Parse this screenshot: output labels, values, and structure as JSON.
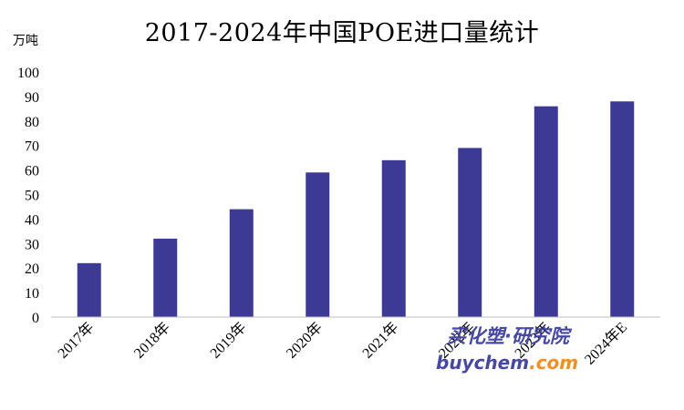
{
  "chart_data": {
    "type": "bar",
    "title": "2017-2024年中国POE进口量统计",
    "ylabel": "万吨",
    "xlabel": "",
    "categories": [
      "2017年",
      "2018年",
      "2019年",
      "2020年",
      "2021年",
      "2022年",
      "2023年",
      "2024年E"
    ],
    "values": [
      22,
      32,
      44,
      59,
      64,
      69,
      86,
      88
    ],
    "ylim": [
      0,
      100
    ],
    "yticks": [
      "0",
      "10",
      "20",
      "30",
      "40",
      "50",
      "60",
      "70",
      "80",
      "90",
      "100"
    ],
    "bar_color": "#3d3a96",
    "grid": false,
    "legend": "none"
  },
  "watermark": {
    "text_cn": "买化塑·研究院",
    "text_en_a": "buychem",
    "text_en_b": ".com",
    "color_a": "#3d3f9c",
    "color_b": "#f08a1c"
  }
}
